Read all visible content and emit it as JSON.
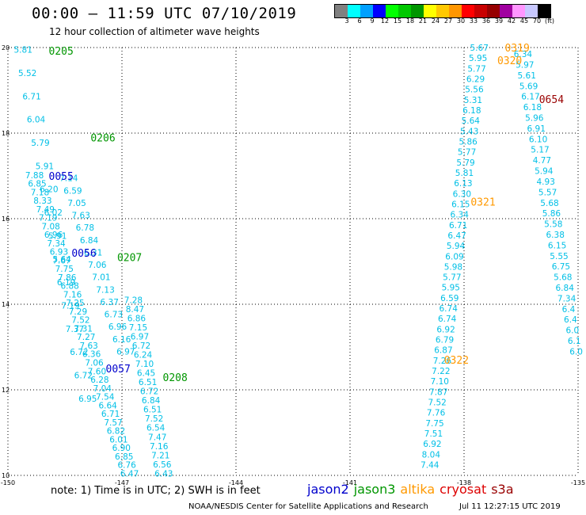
{
  "header": {
    "title": "00:00 – 11:59 UTC 07/10/2019",
    "subtitle": "12 hour collection of altimeter wave heights"
  },
  "colorbar": {
    "colors": [
      "#808080",
      "#00ffff",
      "#00a0ff",
      "#0000ff",
      "#00ff00",
      "#00c800",
      "#009600",
      "#ffff00",
      "#ffc800",
      "#ff9600",
      "#ff0000",
      "#c80000",
      "#960000",
      "#a000a0",
      "#ff96ff",
      "#c8c8ff",
      "#000000"
    ],
    "labels": [
      "3",
      "6",
      "9",
      "12",
      "15",
      "18",
      "21",
      "24",
      "27",
      "30",
      "33",
      "36",
      "39",
      "42",
      "45",
      "70",
      "(ft)"
    ]
  },
  "chart_data": {
    "type": "scatter",
    "x_ticks": [
      "-150",
      "-147",
      "-144",
      "-141",
      "-138",
      "-135"
    ],
    "y_ticks": [
      "20",
      "18",
      "16",
      "14",
      "12",
      "10"
    ],
    "xlim": [
      -150,
      -135
    ],
    "ylim": [
      10,
      20
    ],
    "grid": true,
    "passes": [
      {
        "label": "0205",
        "sat": "jason3",
        "lon": -148.6,
        "lat": 19.93
      },
      {
        "label": "0206",
        "sat": "jason3",
        "lon": -147.5,
        "lat": 17.9
      },
      {
        "label": "0207",
        "sat": "jason3",
        "lon": -146.8,
        "lat": 15.1
      },
      {
        "label": "0208",
        "sat": "jason3",
        "lon": -145.6,
        "lat": 12.3
      },
      {
        "label": "0055",
        "sat": "jason2",
        "lon": -148.6,
        "lat": 17.0
      },
      {
        "label": "0056",
        "sat": "jason2",
        "lon": -148.0,
        "lat": 15.2
      },
      {
        "label": "0057",
        "sat": "jason2",
        "lon": -147.1,
        "lat": 12.5
      },
      {
        "label": "0319",
        "sat": "altika",
        "lon": -136.6,
        "lat": 20.0
      },
      {
        "label": "0320",
        "sat": "altika",
        "lon": -136.8,
        "lat": 19.7
      },
      {
        "label": "0321",
        "sat": "altika",
        "lon": -137.5,
        "lat": 16.4
      },
      {
        "label": "0322",
        "sat": "altika",
        "lon": -138.2,
        "lat": 12.7
      },
      {
        "label": "0654",
        "sat": "s3a",
        "lon": -135.7,
        "lat": 18.8
      }
    ],
    "tracks": [
      {
        "name": "t1",
        "start": [
          -149.6,
          19.95
        ],
        "end": [
          -147.9,
          11.8
        ],
        "values": [
          "5.81",
          "5.52",
          "6.71",
          "6.04",
          "5.79",
          "5.91",
          "6.20",
          "6.02",
          "5.91",
          "5.64",
          "6.19",
          "7.19",
          "7.37",
          "6.72",
          "6.72",
          "6.95"
        ]
      },
      {
        "name": "t2",
        "start": [
          -149.3,
          17.02
        ],
        "end": [
          -146.8,
          10.05
        ],
        "values": [
          "7.88",
          "6.85",
          "7.18",
          "8.33",
          "7.49",
          "7.19",
          "7.08",
          "6.96",
          "7.34",
          "6.93",
          "7.67",
          "7.75",
          "7.86",
          "6.88",
          "7.16",
          "7.25",
          "7.29",
          "7.52",
          "7.31",
          "7.27",
          "7.63",
          "6.36",
          "7.06",
          "7.60",
          "6.28",
          "7.04",
          "7.54",
          "6.64",
          "6.71",
          "7.57",
          "6.82",
          "6.01",
          "6.90",
          "6.85",
          "6.76",
          "6.47"
        ]
      },
      {
        "name": "t3",
        "start": [
          -148.4,
          16.95
        ],
        "end": [
          -146.9,
          12.9
        ],
        "values": [
          "7.14",
          "6.59",
          "7.05",
          "7.63",
          "6.78",
          "6.84",
          "6.31",
          "7.06",
          "7.01",
          "7.13",
          "6.37",
          "6.73",
          "6.96",
          "6.16",
          "6.97"
        ]
      },
      {
        "name": "t4",
        "start": [
          -146.7,
          14.1
        ],
        "end": [
          -145.9,
          10.05
        ],
        "values": [
          "7.28",
          "8.47",
          "6.86",
          "7.15",
          "6.97",
          "6.72",
          "6.24",
          "7.10",
          "6.45",
          "6.51",
          "6.72",
          "6.84",
          "6.51",
          "7.52",
          "6.54",
          "7.47",
          "7.16",
          "7.21",
          "6.56",
          "6.43"
        ]
      },
      {
        "name": "t5",
        "start": [
          -137.6,
          20.0
        ],
        "end": [
          -138.9,
          10.25
        ],
        "values": [
          "5.67",
          "5.95",
          "5.77",
          "6.29",
          "5.56",
          "5.31",
          "6.18",
          "5.64",
          "5.43",
          "5.86",
          "5.77",
          "5.79",
          "5.81",
          "6.13",
          "6.30",
          "6.15",
          "6.34",
          "6.71",
          "6.47",
          "5.94",
          "6.09",
          "5.98",
          "5.77",
          "5.95",
          "6.59",
          "6.74",
          "6.74",
          "6.92",
          "6.79",
          "6.87",
          "7.26",
          "7.22",
          "7.10",
          "7.87",
          "7.52",
          "7.76",
          "7.75",
          "7.51",
          "6.92",
          "8.04",
          "7.44"
        ]
      },
      {
        "name": "t6",
        "start": [
          -136.45,
          19.85
        ],
        "end": [
          -135.05,
          12.9
        ],
        "values": [
          "6.34",
          "5.97",
          "5.61",
          "5.69",
          "6.17",
          "6.18",
          "5.96",
          "6.91",
          "6.10",
          "5.17",
          "4.77",
          "5.94",
          "4.93",
          "5.57",
          "5.68",
          "5.86",
          "5.58",
          "6.38",
          "6.15",
          "5.55",
          "6.75",
          "5.68",
          "6.84",
          "7.34",
          "6.4",
          "6.4",
          "6.0",
          "6.1",
          "6.0"
        ]
      }
    ]
  },
  "footer": {
    "note": "note: 1) Time is in UTC; 2) SWH is in feet",
    "legend": [
      {
        "label": "jason2",
        "color": "#0000cc"
      },
      {
        "label": "jason3",
        "color": "#009600"
      },
      {
        "label": "altika",
        "color": "#ff9900"
      },
      {
        "label": "cryosat",
        "color": "#dd0000"
      },
      {
        "label": "s3a",
        "color": "#990000"
      }
    ],
    "credit": "NOAA/NESDIS Center for Satellite Applications and Research",
    "timestamp": "Jul 11 12:27:15 UTC 2019"
  }
}
